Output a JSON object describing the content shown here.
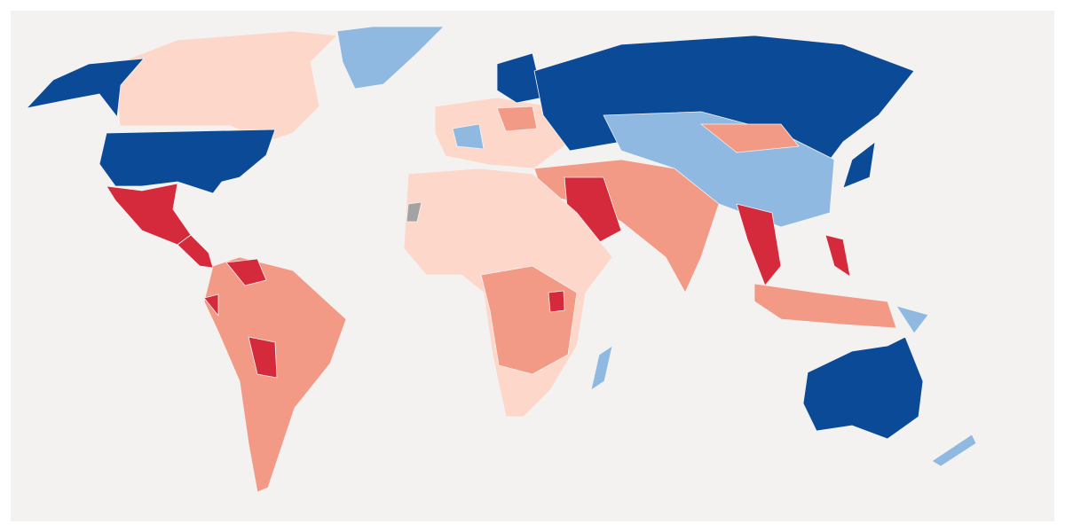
{
  "map": {
    "colors": [
      "#0b4a97",
      "#8fb9e0",
      "#fdd8ca",
      "#f29a86",
      "#d42a3b",
      "#a3a3a3"
    ]
  }
}
